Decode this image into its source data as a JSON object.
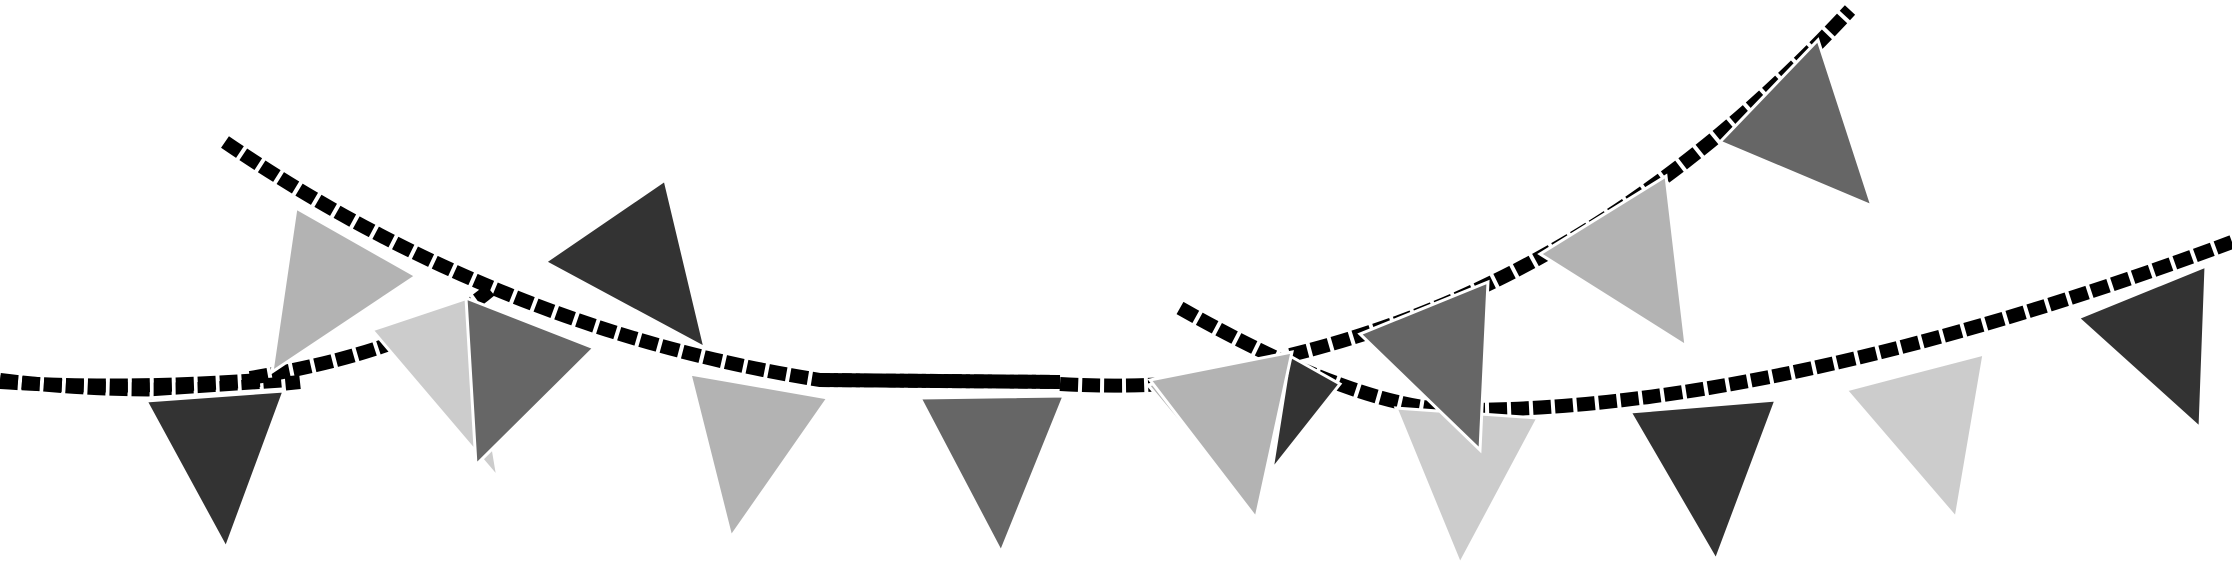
{
  "title": "",
  "palette": {
    "background": "#ffffff",
    "string": "#000000",
    "flag_outline": "#ffffff",
    "flag_shades": [
      "#333333",
      "#666666",
      "#b3b3b3",
      "#cccccc"
    ]
  },
  "garlands": [
    {
      "id": "garland-left-lower",
      "flags": [
        {
          "shade": "#333333"
        },
        {
          "shade": "#cccccc"
        },
        {
          "shade": "#333333"
        }
      ]
    },
    {
      "id": "garland-long-sagging",
      "flags": [
        {
          "shade": "#333333"
        },
        {
          "shade": "#b3b3b3"
        },
        {
          "shade": "#333333"
        }
      ]
    },
    {
      "id": "garland-left-upper",
      "flags": [
        {
          "shade": "#b3b3b3"
        },
        {
          "shade": "#666666"
        },
        {
          "shade": "#b3b3b3"
        },
        {
          "shade": "#666666"
        }
      ]
    },
    {
      "id": "garland-right-lower",
      "flags": [
        {
          "shade": "#cccccc"
        },
        {
          "shade": "#333333"
        },
        {
          "shade": "#cccccc"
        },
        {
          "shade": "#333333"
        }
      ]
    },
    {
      "id": "garland-right-upper",
      "flags": [
        {
          "shade": "#b3b3b3"
        },
        {
          "shade": "#666666"
        },
        {
          "shade": "#b3b3b3"
        },
        {
          "shade": "#666666"
        }
      ]
    }
  ]
}
